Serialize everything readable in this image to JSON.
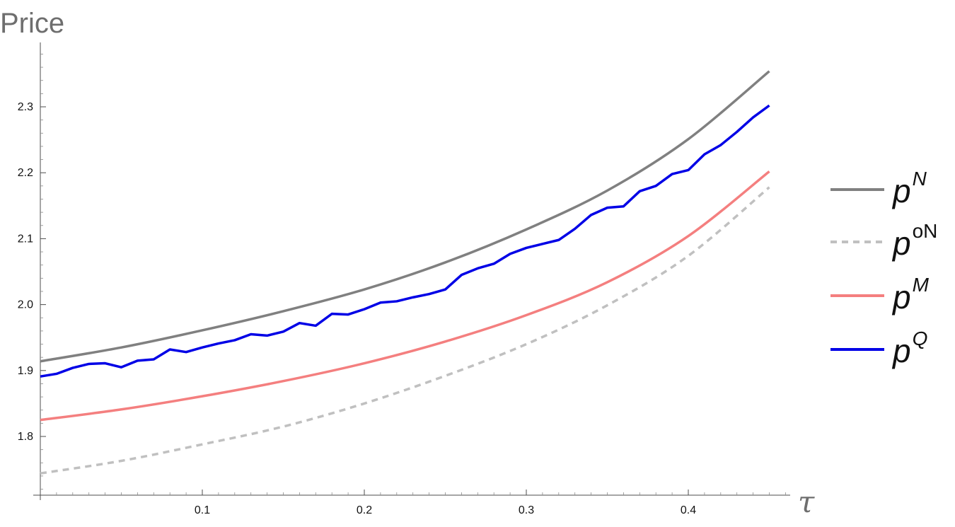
{
  "chart_data": {
    "type": "line",
    "title": "",
    "xlabel": "τ",
    "ylabel": "Price",
    "xlim": [
      0,
      0.46
    ],
    "ylim": [
      1.7,
      2.4
    ],
    "x_ticks": [
      {
        "value": 0.1,
        "label": "0.1"
      },
      {
        "value": 0.2,
        "label": "0.2"
      },
      {
        "value": 0.3,
        "label": "0.3"
      },
      {
        "value": 0.4,
        "label": "0.4"
      }
    ],
    "y_ticks": [
      {
        "value": 1.8,
        "label": "1.8"
      },
      {
        "value": 1.9,
        "label": "1.9"
      },
      {
        "value": 2.0,
        "label": "2.0"
      },
      {
        "value": 2.1,
        "label": "2.1"
      },
      {
        "value": 2.2,
        "label": "2.2"
      },
      {
        "value": 2.3,
        "label": "2.3"
      }
    ],
    "grid": false,
    "legend_position": "right",
    "series": [
      {
        "name": "pN",
        "base": "p",
        "sup": "N",
        "sup_italic": true,
        "color": "#808080",
        "dash": "solid",
        "x": [
          0,
          0.05,
          0.1,
          0.15,
          0.2,
          0.25,
          0.3,
          0.35,
          0.4,
          0.45
        ],
        "y": [
          1.914,
          1.935,
          1.961,
          1.99,
          2.023,
          2.064,
          2.114,
          2.173,
          2.251,
          2.354
        ]
      },
      {
        "name": "poN",
        "base": "p",
        "sup": "oN",
        "sup_italic": false,
        "color": "#c0c0c0",
        "dash": "dashed",
        "x": [
          0,
          0.05,
          0.1,
          0.15,
          0.2,
          0.25,
          0.3,
          0.35,
          0.4,
          0.45
        ],
        "y": [
          1.744,
          1.763,
          1.788,
          1.815,
          1.85,
          1.892,
          1.94,
          1.999,
          2.074,
          2.178
        ]
      },
      {
        "name": "pM",
        "base": "p",
        "sup": "M",
        "sup_italic": true,
        "color": "#f47f7f",
        "dash": "solid",
        "x": [
          0,
          0.05,
          0.1,
          0.15,
          0.2,
          0.25,
          0.3,
          0.35,
          0.4,
          0.45
        ],
        "y": [
          1.825,
          1.841,
          1.861,
          1.884,
          1.911,
          1.944,
          1.984,
          2.034,
          2.104,
          2.202
        ]
      },
      {
        "name": "pQ",
        "base": "p",
        "sup": "Q",
        "sup_italic": true,
        "color": "#0000e6",
        "dash": "solid",
        "x": [
          0,
          0.01,
          0.02,
          0.03,
          0.04,
          0.05,
          0.06,
          0.07,
          0.08,
          0.09,
          0.1,
          0.11,
          0.12,
          0.13,
          0.14,
          0.15,
          0.16,
          0.17,
          0.18,
          0.19,
          0.2,
          0.21,
          0.22,
          0.23,
          0.24,
          0.25,
          0.26,
          0.27,
          0.28,
          0.29,
          0.3,
          0.31,
          0.32,
          0.33,
          0.34,
          0.35,
          0.36,
          0.37,
          0.38,
          0.39,
          0.4,
          0.41,
          0.42,
          0.43,
          0.44,
          0.45
        ],
        "y": [
          1.891,
          1.895,
          1.904,
          1.91,
          1.911,
          1.905,
          1.915,
          1.917,
          1.932,
          1.928,
          1.935,
          1.941,
          1.946,
          1.955,
          1.953,
          1.959,
          1.972,
          1.968,
          1.986,
          1.985,
          1.993,
          2.003,
          2.005,
          2.011,
          2.016,
          2.023,
          2.045,
          2.055,
          2.062,
          2.077,
          2.086,
          2.092,
          2.098,
          2.115,
          2.136,
          2.147,
          2.149,
          2.172,
          2.18,
          2.198,
          2.204,
          2.228,
          2.242,
          2.262,
          2.284,
          2.302
        ]
      }
    ]
  }
}
